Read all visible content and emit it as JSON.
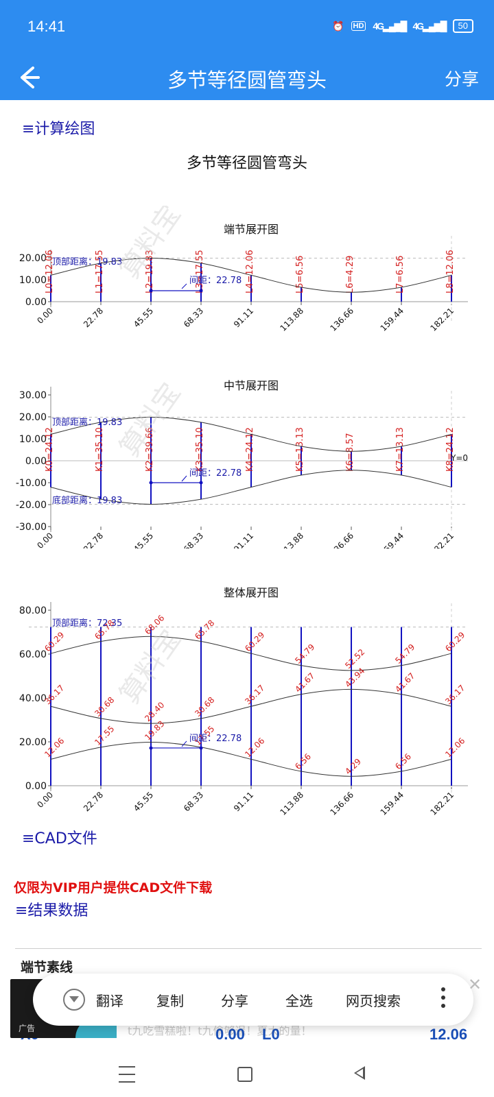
{
  "status_bar": {
    "time": "14:41",
    "battery": "50",
    "hd_label": "HD",
    "net1": "4G",
    "net2": "4G"
  },
  "app_bar": {
    "title": "多节等径圆管弯头",
    "share_label": "分享"
  },
  "sections": {
    "calc_drawing": "≡计算绘图",
    "cad_file": "≡CAD文件",
    "cad_note": "仅限为VIP用户提供CAD文件下载",
    "result_data": "≡结果数据"
  },
  "main_title": "多节等径圆管弯头",
  "watermark": "算料宝",
  "chart_data": [
    {
      "type": "line",
      "title": "端节展开图",
      "x": [
        0.0,
        22.78,
        45.55,
        68.33,
        91.11,
        113.88,
        136.66,
        159.44,
        182.21
      ],
      "x_tick_labels": [
        "0.00",
        "22.78",
        "45.55",
        "68.33",
        "91.11",
        "113.88",
        "136.66",
        "159.44",
        "182.21"
      ],
      "series": [
        {
          "values": [
            12.06,
            17.55,
            19.83,
            17.55,
            12.06,
            6.56,
            4.29,
            6.56,
            12.06
          ]
        }
      ],
      "vertical_labels": [
        "L0=12.06",
        "L1=17.55",
        "L2=19.83",
        "L3=17.55",
        "L4=12.06",
        "L5=6.56",
        "L6=4.29",
        "L7=6.56",
        "L8=12.06"
      ],
      "yticks": [
        "20.00",
        "10.00",
        "0.00"
      ],
      "ylim": [
        0,
        20
      ],
      "annotations": {
        "top": "顶部距离：19.83",
        "spacing": "间距：22.78"
      }
    },
    {
      "type": "line",
      "title": "中节展开图",
      "x": [
        0.0,
        22.78,
        45.55,
        68.33,
        91.11,
        113.88,
        136.66,
        159.44,
        182.21
      ],
      "x_tick_labels": [
        "0.00",
        "22.78",
        "45.55",
        "68.33",
        "91.11",
        "113.88",
        "136.66",
        "159.44",
        "182.21"
      ],
      "series": [
        {
          "values": [
            12.06,
            17.55,
            19.83,
            17.55,
            12.06,
            6.56,
            4.29,
            6.56,
            12.06
          ]
        },
        {
          "values": [
            -12.06,
            -17.55,
            -19.83,
            -17.55,
            -12.06,
            -6.56,
            -4.29,
            -6.56,
            -12.06
          ]
        }
      ],
      "vertical_labels": [
        "K0=24.12",
        "K1=35.10",
        "K2=39.66",
        "K3=35.10",
        "K4=24.12",
        "K5=13.13",
        "K6=8.57",
        "K7=13.13",
        "K8=24.12"
      ],
      "yticks": [
        "30.00",
        "20.00",
        "10.00",
        "0.00",
        "-10.00",
        "-20.00",
        "-30.00"
      ],
      "ylim": [
        -30,
        30
      ],
      "annotations": {
        "top": "顶部距离：19.83",
        "bottom": "底部距离：19.83",
        "spacing": "间距：22.78",
        "axis": "Y=0"
      }
    },
    {
      "type": "line",
      "title": "整体展开图",
      "x": [
        0.0,
        22.78,
        45.55,
        68.33,
        91.11,
        113.88,
        136.66,
        159.44,
        182.21
      ],
      "x_tick_labels": [
        "0.00",
        "22.78",
        "45.55",
        "68.33",
        "91.11",
        "113.88",
        "136.66",
        "159.44",
        "182.21"
      ],
      "series": [
        {
          "values": [
            60.29,
            65.78,
            68.06,
            65.78,
            60.29,
            54.79,
            52.52,
            54.79,
            60.29
          ]
        },
        {
          "values": [
            36.17,
            30.68,
            28.4,
            30.68,
            36.17,
            41.67,
            43.94,
            41.67,
            36.17
          ]
        },
        {
          "values": [
            12.06,
            17.55,
            19.83,
            17.55,
            12.06,
            6.56,
            4.29,
            6.56,
            12.06
          ]
        }
      ],
      "top_line": 72.35,
      "yticks": [
        "80.00",
        "60.00",
        "40.00",
        "20.00",
        "0.00"
      ],
      "ylim": [
        0,
        80
      ],
      "annotations": {
        "top": "顶部距离：72.35",
        "spacing": "间距：22.78"
      }
    }
  ],
  "result": {
    "row_title": "端节素线",
    "first_row": {
      "x_label": "X0",
      "x_value": "0.00",
      "l_label": "L0",
      "l_value": "12.06"
    }
  },
  "ad": {
    "label": "广告",
    "text": "t九吃雪糕啦！t九偷够逞！夏大的量！"
  },
  "context_menu": {
    "items": [
      "翻译",
      "复制",
      "分享",
      "全选",
      "网页搜索"
    ]
  }
}
